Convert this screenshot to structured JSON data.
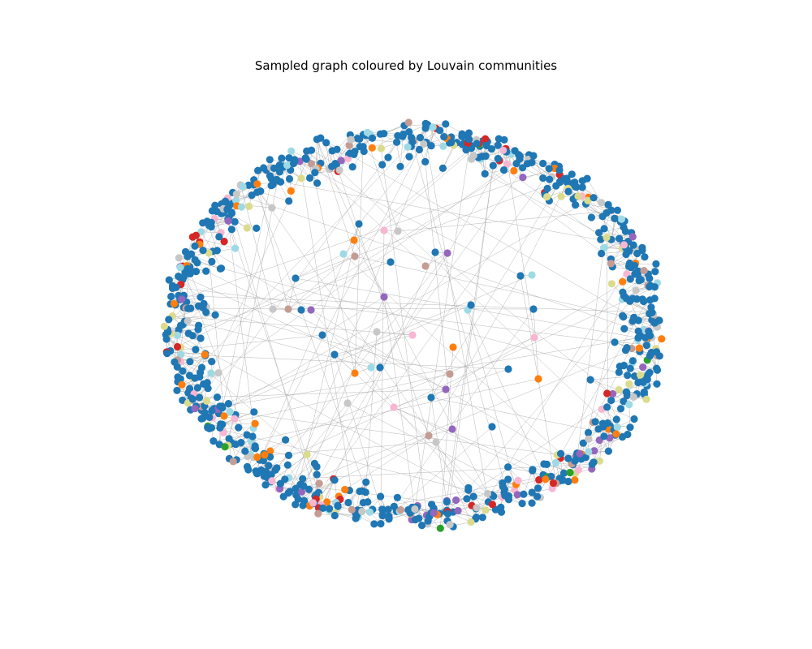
{
  "figure": {
    "title": "Sampled graph coloured by Louvain communities"
  },
  "chart_data": {
    "type": "network",
    "title": "Sampled graph coloured by Louvain communities",
    "axes_visible": false,
    "legend": false,
    "community_palette": [
      "#1f77b4",
      "#d62728",
      "#ff7f0e",
      "#2ca02c",
      "#9467bd",
      "#8c564b",
      "#e377c2",
      "#7f7f7f",
      "#bcbd22",
      "#17becf",
      "#aec7e8",
      "#ffbb78",
      "#98df8a",
      "#ff9896",
      "#c5b0d5",
      "#c49c94",
      "#f7b6d2",
      "#c7c7c7",
      "#dbdb8d",
      "#9edae5"
    ],
    "node_color_weights": {
      "#1f77b4": 0.7,
      "#d62728": 0.035,
      "#ff7f0e": 0.035,
      "#2ca02c": 0.025,
      "#9467bd": 0.03,
      "#c49c94": 0.03,
      "#f7b6d2": 0.025,
      "#c7c7c7": 0.035,
      "#dbdb8d": 0.035,
      "#9edae5": 0.05
    },
    "edge_color": "#a0a0a0",
    "layout": "ring-like force layout"
  }
}
